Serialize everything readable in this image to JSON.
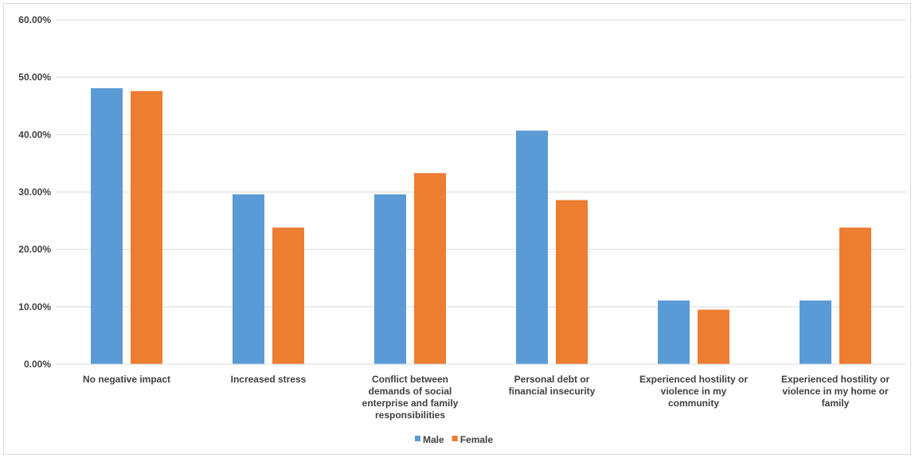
{
  "chart_data": {
    "type": "bar",
    "title": "",
    "xlabel": "",
    "ylabel": "",
    "ylim": [
      0,
      60
    ],
    "y_ticks": [
      "0.00%",
      "10.00%",
      "20.00%",
      "30.00%",
      "40.00%",
      "50.00%",
      "60.00%"
    ],
    "y_tick_values": [
      0,
      10,
      20,
      30,
      40,
      50,
      60
    ],
    "categories": [
      [
        "No negative impact"
      ],
      [
        "Increased stress"
      ],
      [
        "Conflict between",
        "demands of social",
        "enterprise and family",
        "responsibilities"
      ],
      [
        "Personal debt or",
        "financial insecurity"
      ],
      [
        "Experienced hostility or",
        "violence in my",
        "community"
      ],
      [
        "Experienced hostility or",
        "violence in my home or",
        "family"
      ]
    ],
    "series": [
      {
        "name": "Male",
        "color": "#5b9bd5",
        "values": [
          48.1,
          29.6,
          29.6,
          40.7,
          11.1,
          11.1
        ]
      },
      {
        "name": "Female",
        "color": "#ed7d31",
        "values": [
          47.6,
          23.8,
          33.3,
          28.6,
          9.5,
          23.8
        ]
      }
    ],
    "grid": true,
    "legend": "bottom"
  }
}
